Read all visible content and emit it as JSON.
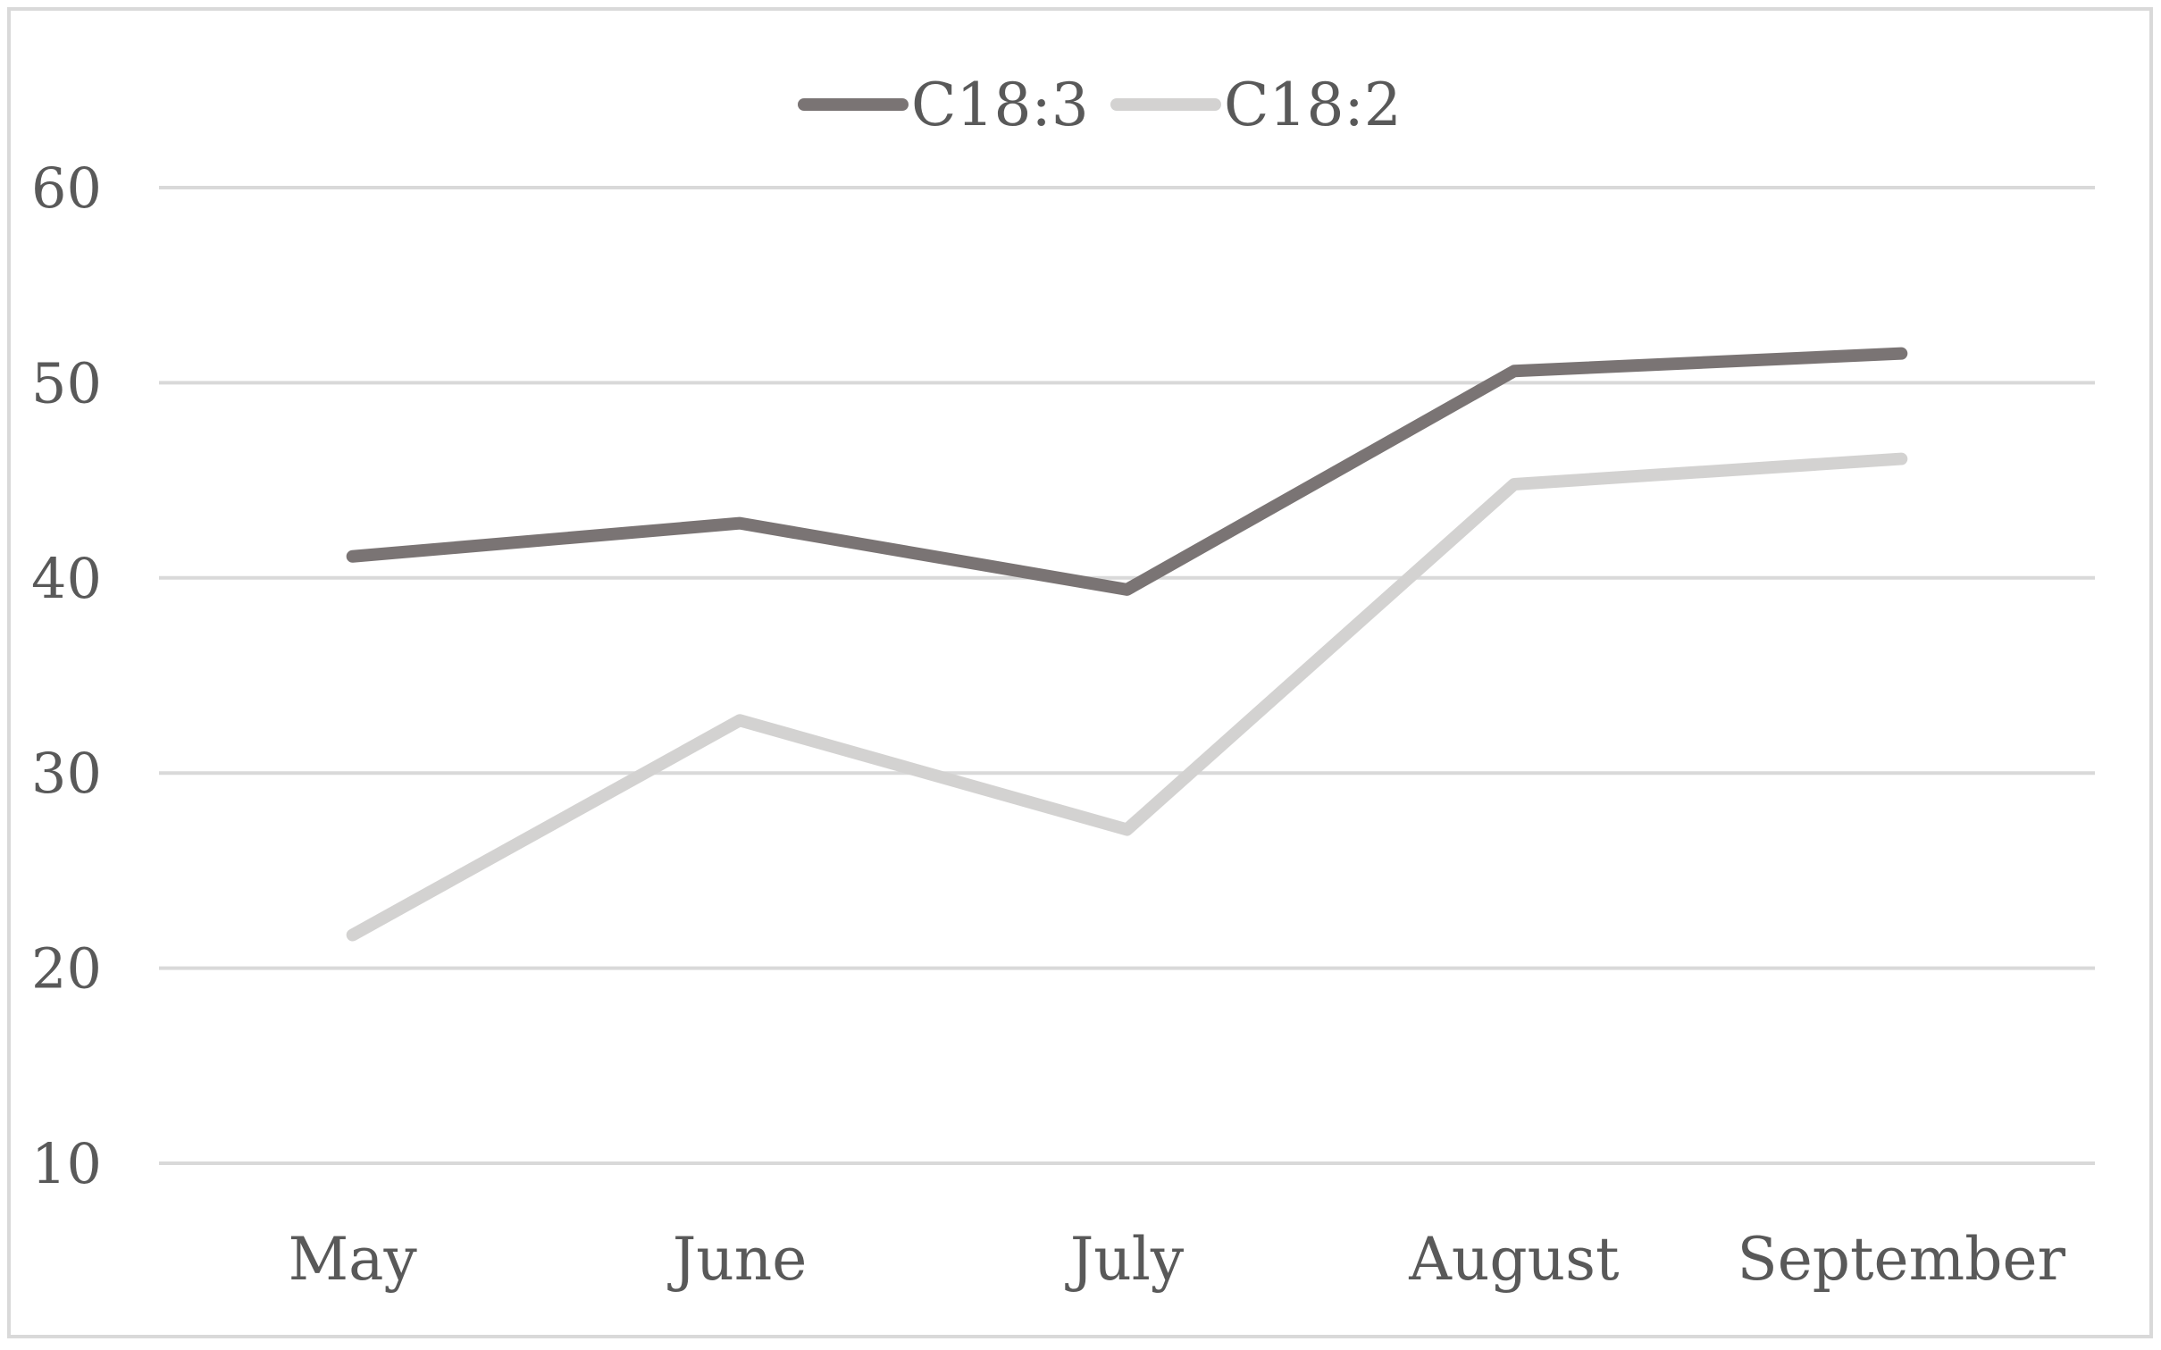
{
  "chart_data": {
    "type": "line",
    "title": "",
    "xlabel": "",
    "ylabel": "",
    "categories": [
      "May",
      "June",
      "July",
      "August",
      "September"
    ],
    "series": [
      {
        "name": "C18:3",
        "values": [
          41.1,
          42.8,
          39.4,
          50.6,
          51.5
        ],
        "color": "#7a7474"
      },
      {
        "name": "C18:2",
        "values": [
          21.7,
          32.7,
          27.1,
          44.8,
          46.1
        ],
        "color": "#d3d2d1"
      }
    ],
    "ylim": [
      10,
      60
    ],
    "yticks": [
      "10",
      "20",
      "30",
      "40",
      "50",
      "60"
    ],
    "grid": true,
    "legend_position": "top-center",
    "colors": {
      "grid": "#d9d9d9",
      "frame": "#d9d9d9",
      "text": "#595959"
    }
  }
}
